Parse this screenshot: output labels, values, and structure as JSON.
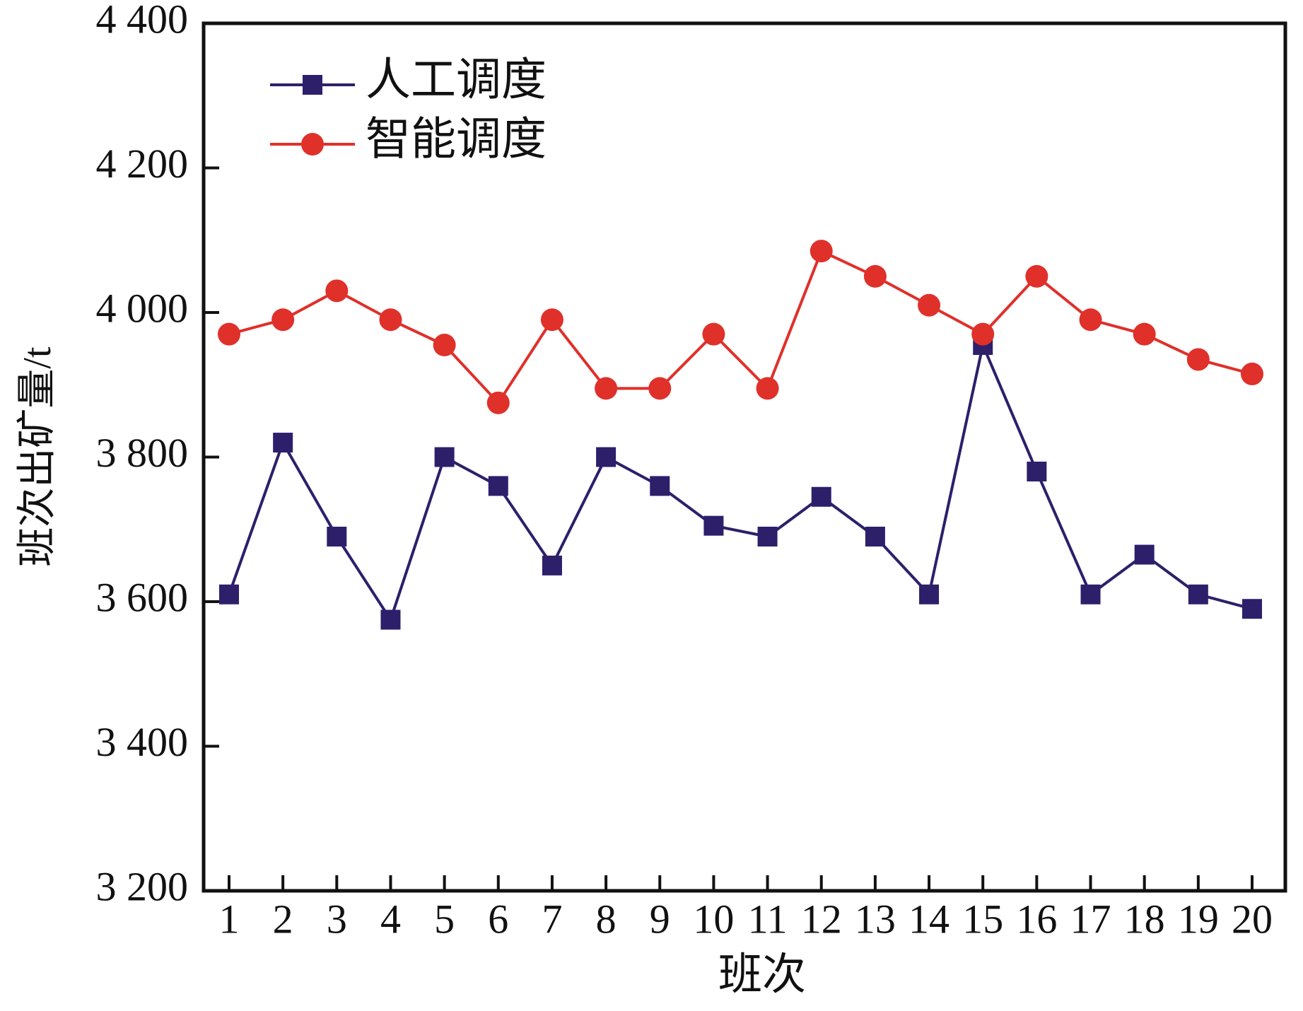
{
  "chart_data": {
    "type": "line",
    "x_label": "班次",
    "y_label": "班次出矿量/t",
    "categories": [
      "1",
      "2",
      "3",
      "4",
      "5",
      "6",
      "7",
      "8",
      "9",
      "10",
      "11",
      "12",
      "13",
      "14",
      "15",
      "16",
      "17",
      "18",
      "19",
      "20"
    ],
    "series": [
      {
        "name": "人工调度",
        "color": "#2e1f6b",
        "marker": "square",
        "values": [
          3610,
          3820,
          3690,
          3575,
          3800,
          3760,
          3650,
          3800,
          3760,
          3705,
          3690,
          3745,
          3690,
          3610,
          3955,
          3780,
          3610,
          3665,
          3610,
          3590
        ]
      },
      {
        "name": "智能调度",
        "color": "#e0302a",
        "marker": "circle",
        "values": [
          3970,
          3990,
          4030,
          3990,
          3955,
          3875,
          3990,
          3895,
          3895,
          3970,
          3895,
          4085,
          4050,
          4010,
          3970,
          4050,
          3990,
          3970,
          3935,
          3915
        ]
      }
    ],
    "ylim": [
      3200,
      4400
    ],
    "yticks": [
      {
        "value": 3200,
        "label": "3 200"
      },
      {
        "value": 3400,
        "label": "3 400"
      },
      {
        "value": 3600,
        "label": "3 600"
      },
      {
        "value": 3800,
        "label": "3 800"
      },
      {
        "value": 4000,
        "label": "4 000"
      },
      {
        "value": 4200,
        "label": "4 200"
      },
      {
        "value": 4400,
        "label": "4 400"
      }
    ],
    "legend": "upper-left",
    "grid": false
  }
}
